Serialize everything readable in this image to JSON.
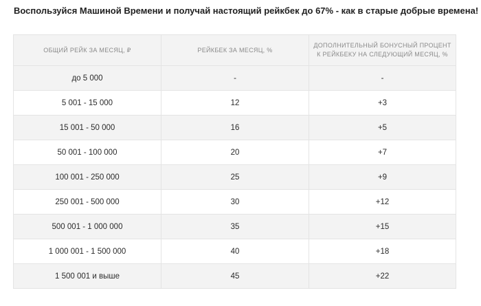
{
  "headline": "Воспользуйся Машиной Времени и получай настоящий рейкбек до 67% - как в старые добрые времена!",
  "table": {
    "headers": [
      "ОБЩИЙ РЕЙК ЗА МЕСЯЦ, ₽",
      "РЕЙКБЕК ЗА МЕСЯЦ, %",
      "ДОПОЛНИТЕЛЬНЫЙ БОНУСНЫЙ ПРОЦЕНТ К РЕЙКБЕКУ НА СЛЕДУЮЩИЙ МЕСЯЦ, %"
    ],
    "rows": [
      [
        "до 5 000",
        "-",
        "-"
      ],
      [
        "5 001 - 15 000",
        "12",
        "+3"
      ],
      [
        "15 001 - 50 000",
        "16",
        "+5"
      ],
      [
        "50 001 - 100 000",
        "20",
        "+7"
      ],
      [
        "100 001 - 250 000",
        "25",
        "+9"
      ],
      [
        "250 001 - 500 000",
        "30",
        "+12"
      ],
      [
        "500 001 - 1 000 000",
        "35",
        "+15"
      ],
      [
        "1 000 001 - 1 500 000",
        "40",
        "+18"
      ],
      [
        "1 500 001 и выше",
        "45",
        "+22"
      ]
    ]
  }
}
